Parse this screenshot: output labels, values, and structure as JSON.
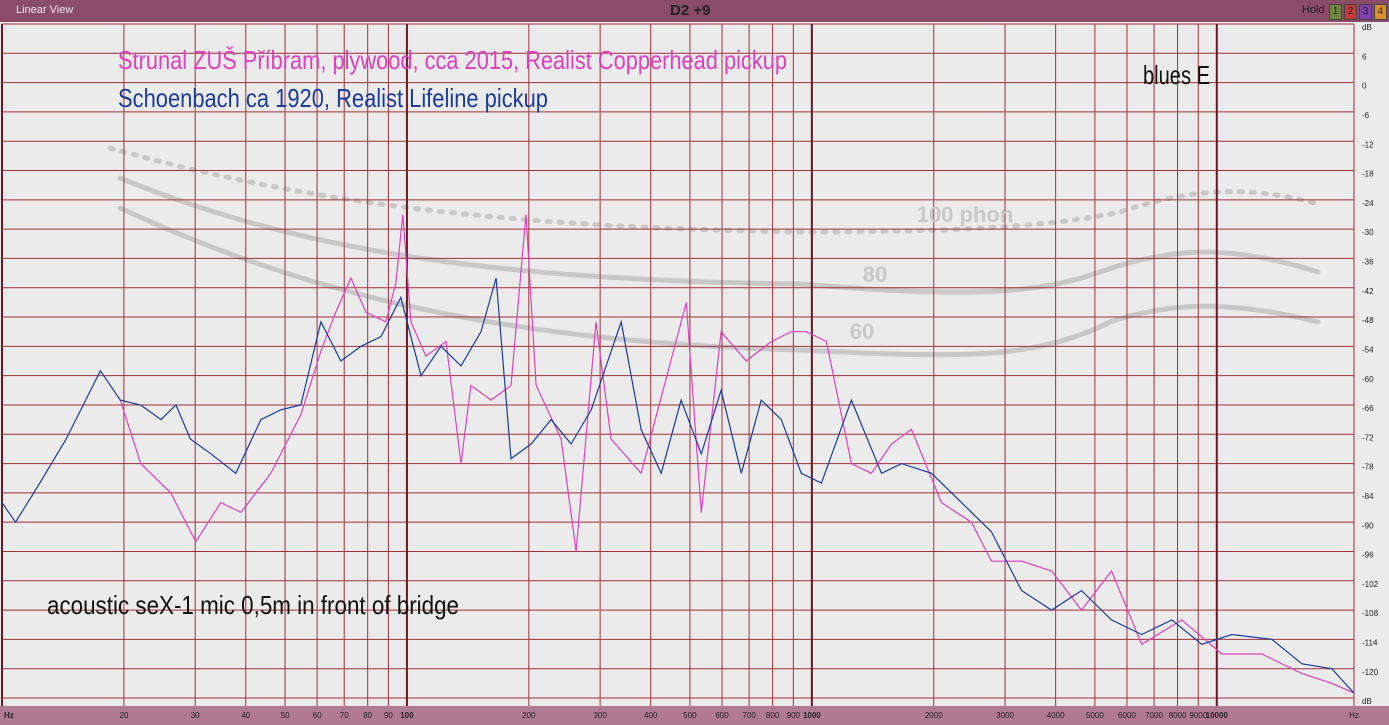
{
  "toolbar": {
    "view": "Linear View",
    "title": "D2 +9",
    "hold": "Hold",
    "buttons": [
      "1",
      "2",
      "3",
      "4"
    ]
  },
  "chart_data": {
    "type": "line",
    "log_x": true,
    "grid": true,
    "annotations": [
      "blues E",
      "acoustic seX-1 mic 0,5m in front of bridge"
    ],
    "phon_labels": [
      "100 phon",
      "80",
      "60"
    ],
    "xlim": [
      10,
      21820
    ],
    "ylim": [
      -126,
      12
    ],
    "xticks": [
      {
        "value": 10,
        "label": "Hz"
      },
      20,
      30,
      40,
      50,
      60,
      70,
      80,
      90,
      100,
      200,
      300,
      400,
      500,
      600,
      700,
      800,
      900,
      1000,
      2000,
      3000,
      4000,
      5000,
      6000,
      7000,
      8000,
      9000,
      10000,
      {
        "value": 21820,
        "label": "Hz"
      }
    ],
    "yticks": [
      {
        "value": 12,
        "label": "dB"
      },
      6,
      0,
      -6,
      -12,
      -18,
      -24,
      -30,
      -36,
      -42,
      -48,
      -54,
      -60,
      -66,
      -72,
      -78,
      -84,
      -90,
      -96,
      -102,
      -108,
      -114,
      -120,
      {
        "value": -126,
        "label": "dB"
      }
    ],
    "series": [
      {
        "name": "Strunal ZUŠ Příbram, plywood, cca 2015, Realist Copperhead pickup",
        "color": "#e040c0",
        "x": [
          19.6,
          22,
          26.1,
          30.1,
          34.7,
          38.9,
          46.1,
          54.7,
          61.3,
          66.7,
          72.7,
          79.2,
          88.7,
          93.9,
          97.7,
          102.3,
          111.4,
          124.9,
          136,
          143.9,
          161.3,
          180.7,
          196.8,
          208.4,
          240.3,
          261.7,
          293.1,
          319.3,
          378.8,
          489.8,
          533.3,
          597,
          688.7,
          794.3,
          889.3,
          969.2,
          1086,
          1252,
          1403,
          1573,
          1762,
          2089,
          2478,
          2778,
          3296,
          3908,
          4634,
          5495,
          6526,
          8195,
          10290,
          12920,
          16230,
          19230,
          21820
        ],
        "values": [
          -65,
          -78,
          -84,
          -94,
          -86,
          -88,
          -80,
          -68,
          -55,
          -47,
          -40,
          -47,
          -49,
          -41,
          -27,
          -49,
          -56,
          -53,
          -78,
          -62,
          -65,
          -62,
          -27,
          -62,
          -73,
          -96,
          -49,
          -73,
          -80,
          -45,
          -88,
          -51,
          -57,
          -53,
          -51,
          -51,
          -53,
          -78,
          -80,
          -74,
          -71,
          -86,
          -90,
          -98,
          -98,
          -100,
          -108,
          -100,
          -115,
          -110,
          -117,
          -117,
          -121,
          -123,
          -125
        ]
      },
      {
        "name": "Schoenbach ca 1920, Realist Lifeline pickup",
        "color": "#1c3c9c",
        "x": [
          10,
          10.8,
          12.4,
          14.4,
          17.5,
          19.6,
          22,
          24.7,
          26.9,
          29.2,
          32.8,
          37.8,
          43.6,
          48.8,
          54.7,
          61.3,
          68.7,
          77,
          86.3,
          96.6,
          108.3,
          121.4,
          136,
          152.4,
          166,
          180.7,
          202.6,
          227,
          254.4,
          285.1,
          338.1,
          378.8,
          424.6,
          475.3,
          533.3,
          597,
          669.4,
          749.9,
          840.7,
          941.9,
          1056,
          1252,
          1486,
          1665,
          1975,
          2342,
          2778,
          3296,
          3908,
          4634,
          5495,
          6526,
          7745,
          9184,
          10890,
          13680,
          16230,
          19230,
          21820
        ],
        "values": [
          -86,
          -90,
          -82,
          -73,
          -59,
          -65,
          -66,
          -69,
          -66,
          -73,
          -76,
          -80,
          -69,
          -67,
          -66,
          -49,
          -57,
          -54,
          -52,
          -44,
          -60,
          -54,
          -58,
          -51,
          -40,
          -77,
          -74,
          -69,
          -74,
          -67,
          -49,
          -71,
          -80,
          -65,
          -76,
          -63,
          -80,
          -65,
          -69,
          -80,
          -82,
          -65,
          -80,
          -78,
          -80,
          -86,
          -92,
          -104,
          -108,
          -104,
          -110,
          -113,
          -110,
          -115,
          -113,
          -114,
          -119,
          -120,
          -125
        ]
      }
    ]
  }
}
